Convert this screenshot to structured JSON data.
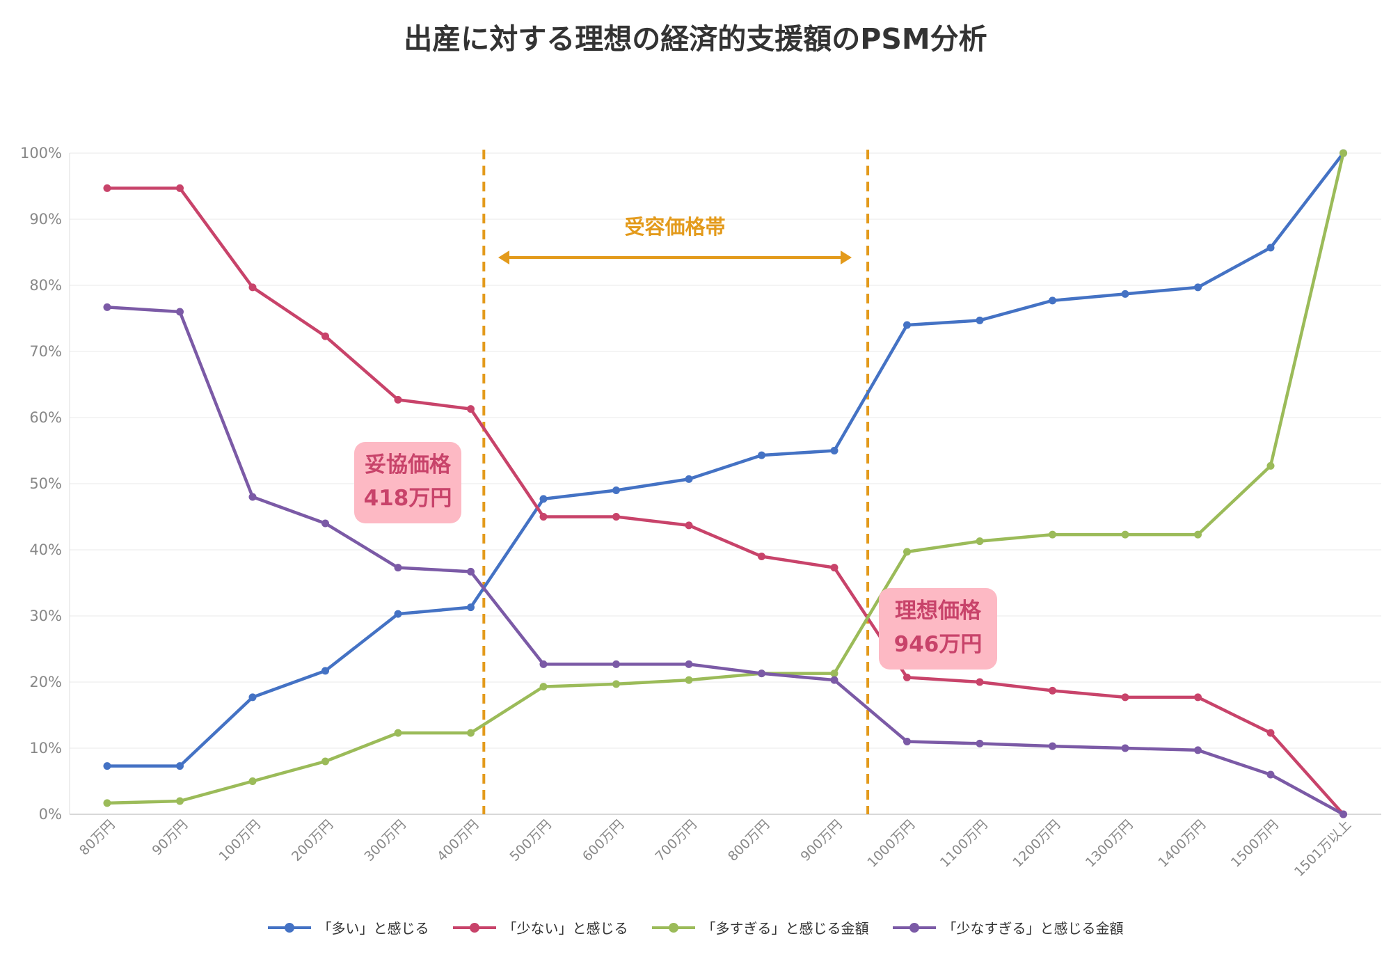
{
  "chart_data": {
    "type": "line",
    "title": "出産に対する理想の経済的支援額のPSM分析",
    "categories": [
      "80万円",
      "90万円",
      "100万円",
      "200万円",
      "300万円",
      "400万円",
      "500万円",
      "600万円",
      "700万円",
      "800万円",
      "900万円",
      "1000万円",
      "1100万円",
      "1200万円",
      "1300万円",
      "1400万円",
      "1500万円",
      "1501万以上"
    ],
    "yticks": [
      "0%",
      "10%",
      "20%",
      "30%",
      "40%",
      "50%",
      "60%",
      "70%",
      "80%",
      "90%",
      "100%"
    ],
    "ylim": [
      0,
      100
    ],
    "series": [
      {
        "name": "「多い」と感じる",
        "color": "#4472C4",
        "values": [
          7.3,
          7.3,
          17.7,
          21.7,
          30.3,
          31.3,
          47.7,
          49.0,
          50.7,
          54.3,
          55.0,
          74.0,
          74.7,
          77.7,
          78.7,
          79.7,
          85.7,
          100
        ]
      },
      {
        "name": "「少ない」と感じる",
        "color": "#C8436A",
        "values": [
          94.7,
          94.7,
          79.7,
          72.3,
          62.7,
          61.3,
          45.0,
          45.0,
          43.7,
          39.0,
          37.3,
          20.7,
          20.0,
          18.7,
          17.7,
          17.7,
          12.3,
          0
        ]
      },
      {
        "name": "「多すぎる」と感じる金額",
        "color": "#9BBB59",
        "values": [
          1.7,
          2.0,
          5.0,
          8.0,
          12.3,
          12.3,
          19.3,
          19.7,
          20.3,
          21.3,
          21.3,
          39.7,
          41.3,
          42.3,
          42.3,
          42.3,
          52.7,
          100
        ]
      },
      {
        "name": "「少なすぎる」と感じる金額",
        "color": "#7B5AA6",
        "values": [
          76.7,
          76.0,
          48.0,
          44.0,
          37.3,
          36.7,
          22.7,
          22.7,
          22.7,
          21.3,
          20.3,
          11.0,
          10.7,
          10.3,
          10.0,
          9.7,
          6.0,
          0
        ]
      }
    ],
    "reference_lines": [
      {
        "label": "妥協価格",
        "value_text": "418万円",
        "x_value": 418,
        "color": "#E39A1B"
      },
      {
        "label": "理想価格",
        "value_text": "946万円",
        "x_value": 946,
        "color": "#E39A1B"
      }
    ],
    "band_label": "受容価格帯",
    "colors": {
      "band": "#E39A1B",
      "callout_bg": "#FDB9C4",
      "callout_text": "#C8436A",
      "grid": "#E8E8E8",
      "tick": "#888888"
    }
  }
}
